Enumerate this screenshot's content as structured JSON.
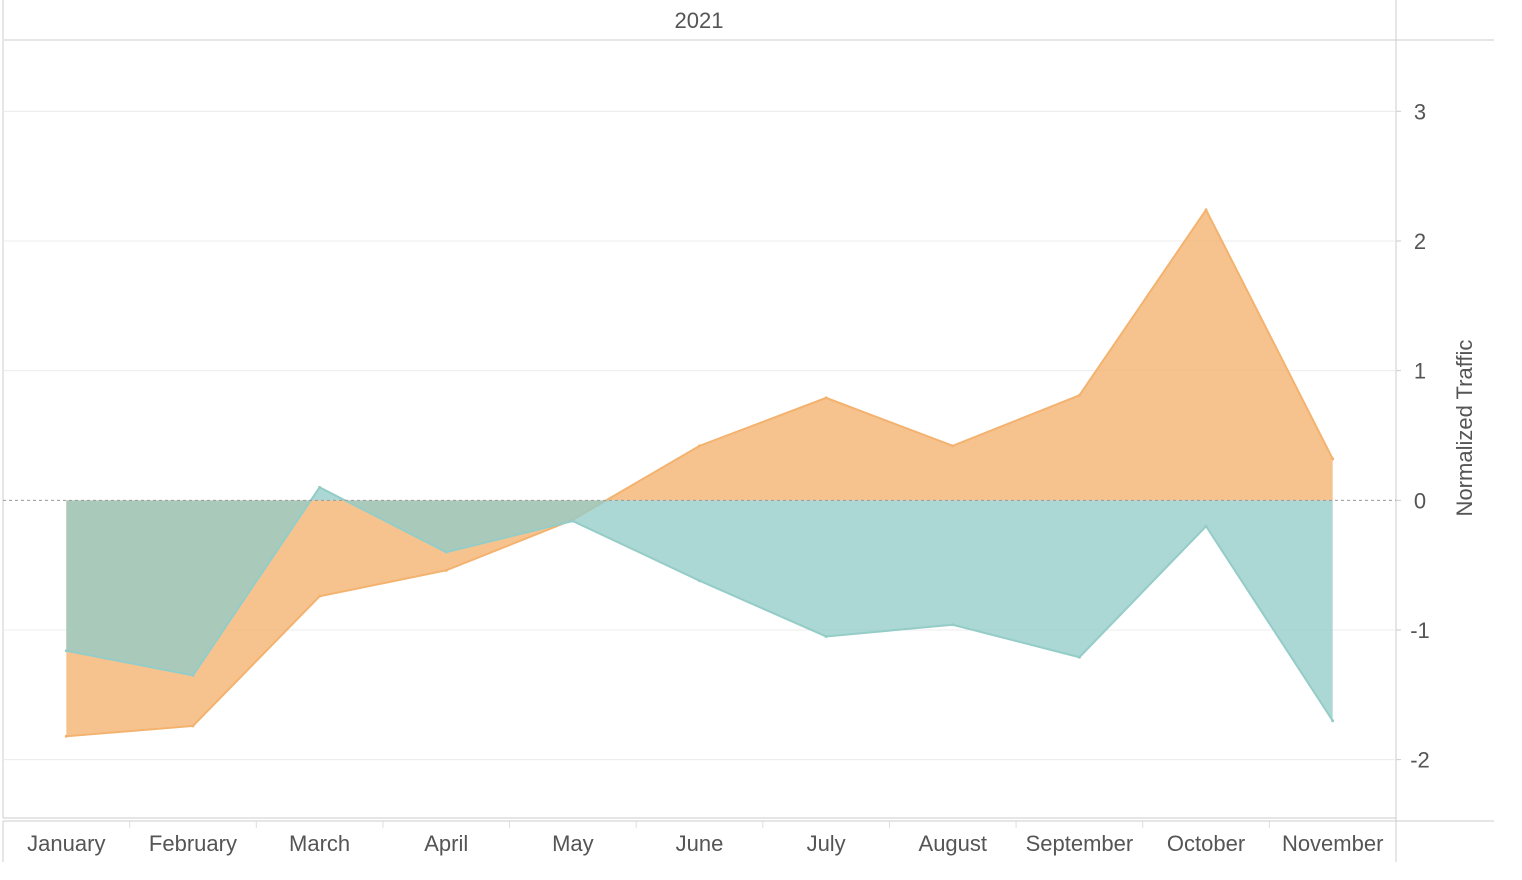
{
  "header": {
    "year_label": "2021"
  },
  "chart_data": {
    "type": "area",
    "title": "",
    "header": "2021",
    "xlabel": "",
    "ylabel": "Normalized Traffic",
    "categories": [
      "January",
      "February",
      "March",
      "April",
      "May",
      "June",
      "July",
      "August",
      "September",
      "October",
      "November"
    ],
    "ylim": [
      -2.45,
      3.55
    ],
    "yticks": [
      -2,
      -1,
      0,
      1,
      2,
      3
    ],
    "grid": true,
    "legend": "none",
    "series": [
      {
        "color": "#f4b26f",
        "values": [
          -1.82,
          -1.74,
          -0.74,
          -0.54,
          -0.15,
          0.42,
          0.79,
          0.42,
          0.81,
          2.24,
          0.32
        ]
      },
      {
        "color": "#94ccc8",
        "values": [
          -1.16,
          -1.35,
          0.1,
          -0.4,
          -0.16,
          -0.62,
          -1.05,
          -0.96,
          -1.21,
          -0.2,
          -1.7
        ]
      }
    ]
  }
}
